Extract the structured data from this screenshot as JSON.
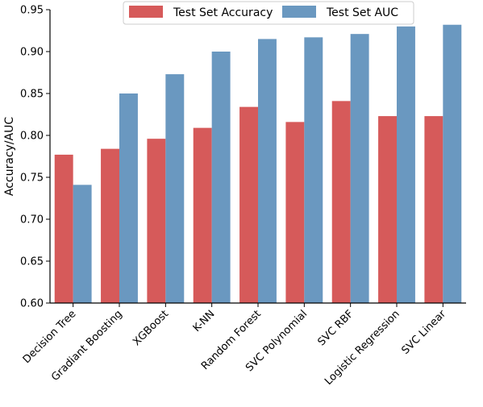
{
  "chart_data": {
    "type": "bar",
    "title": "",
    "xlabel": "",
    "ylabel": "Accuracy/AUC",
    "ylim": [
      0.6,
      0.95
    ],
    "yticks": [
      "0.60",
      "0.65",
      "0.70",
      "0.75",
      "0.80",
      "0.85",
      "0.90",
      "0.95"
    ],
    "grid": false,
    "legend_position": "top-center",
    "categories": [
      "Decision Tree",
      "Gradiant Boosting",
      "XGBoost",
      "K-NN",
      "Random Forest",
      "SVC Polynomial",
      "SVC RBF",
      "Logistic Regression",
      "SVC Linear"
    ],
    "series": [
      {
        "name": "Test Set Accuracy",
        "color": "#d65a5a",
        "values": [
          0.777,
          0.784,
          0.796,
          0.809,
          0.834,
          0.816,
          0.841,
          0.823,
          0.823
        ]
      },
      {
        "name": "Test Set AUC",
        "color": "#6a98c0",
        "values": [
          0.741,
          0.85,
          0.873,
          0.9,
          0.915,
          0.917,
          0.921,
          0.93,
          0.932
        ]
      }
    ]
  }
}
